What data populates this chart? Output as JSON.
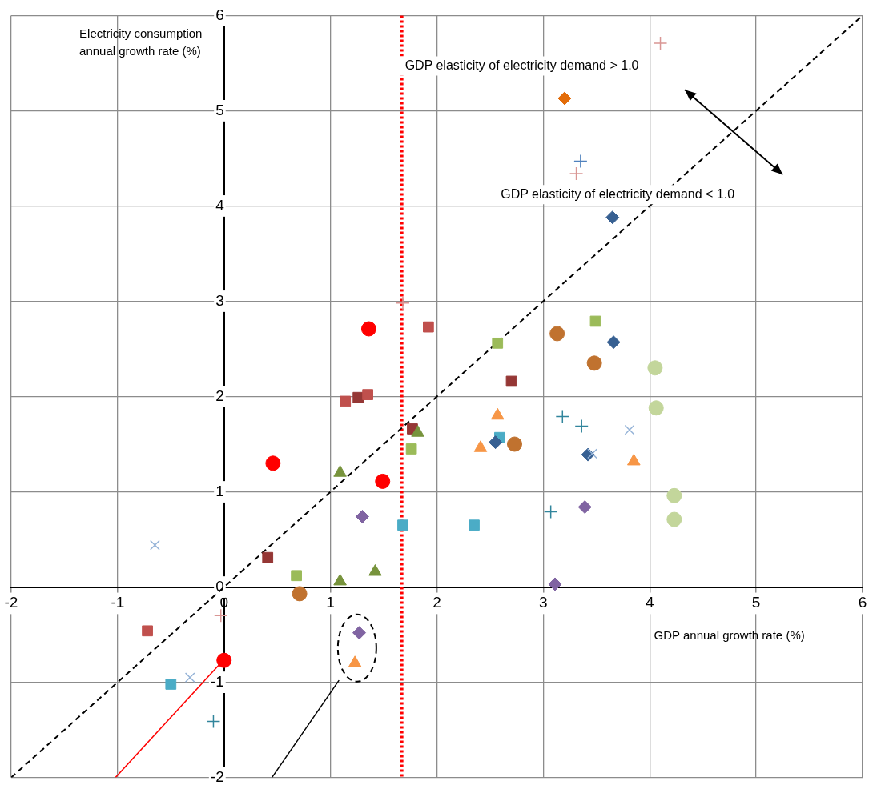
{
  "chart_data": {
    "type": "scatter",
    "xlabel": "GDP annual growth rate (%)",
    "ylabel": "Electricity consumption annual growth rate (%)",
    "xlim": [
      -2,
      6
    ],
    "xticks": [
      -2,
      -1,
      0,
      1,
      2,
      3,
      4,
      5,
      6
    ],
    "ylim": [
      -2,
      6
    ],
    "yticks": [
      -2,
      -1,
      0,
      1,
      2,
      3,
      4,
      5,
      6
    ],
    "grid": true,
    "legend": false,
    "annotations": [
      "GDP elasticity of electricity demand > 1.0",
      "GDP elasticity of electricity demand < 1.0"
    ],
    "ref_lines": [
      {
        "axis": "x",
        "value": 1.67,
        "color": "#ff0000",
        "line_style": "dotted"
      }
    ],
    "series": [
      {
        "type": "line",
        "color": "#000000",
        "line_style": "dashed",
        "marker": "none",
        "x": [
          -2,
          6
        ],
        "values": [
          -2,
          6
        ]
      },
      {
        "color": "#ff0000",
        "marker": "circle",
        "x": [
          0.46,
          1.36,
          1.49,
          0.0
        ],
        "values": [
          1.3,
          2.71,
          1.11,
          -0.77
        ]
      },
      {
        "color": "#953735",
        "marker": "square",
        "x": [
          0.41,
          1.26,
          1.77,
          2.7
        ],
        "values": [
          0.31,
          1.99,
          1.66,
          2.16
        ]
      },
      {
        "color": "#c0504d",
        "marker": "square",
        "x": [
          -0.72,
          1.14,
          1.35,
          1.92
        ],
        "values": [
          -0.46,
          1.95,
          2.02,
          2.73
        ]
      },
      {
        "color": "#9bbb59",
        "marker": "square",
        "x": [
          0.68,
          1.76,
          2.57,
          3.49
        ],
        "values": [
          0.12,
          1.45,
          2.56,
          2.79
        ]
      },
      {
        "color": "#77933c",
        "marker": "triangle",
        "x": [
          1.09,
          1.09,
          1.42,
          1.82
        ],
        "values": [
          1.2,
          0.06,
          0.16,
          1.62
        ]
      },
      {
        "color": "#f79646",
        "marker": "triangle",
        "x": [
          1.23,
          2.41,
          2.57,
          3.85
        ],
        "values": [
          -0.8,
          1.46,
          1.8,
          1.32
        ]
      },
      {
        "color": "#4bacc6",
        "marker": "square",
        "x": [
          -0.5,
          1.68,
          2.35,
          2.59
        ],
        "values": [
          -1.02,
          0.65,
          0.65,
          1.57
        ]
      },
      {
        "color": "#c0722f",
        "marker": "circle",
        "x": [
          0.71,
          2.73,
          3.13,
          3.48
        ],
        "values": [
          -0.07,
          1.5,
          2.66,
          2.35
        ]
      },
      {
        "color": "#c3d69b",
        "marker": "circle",
        "x": [
          4.05,
          4.06,
          4.23,
          4.23
        ],
        "values": [
          2.3,
          1.88,
          0.96,
          0.71
        ]
      },
      {
        "color": "#8064a2",
        "marker": "diamond",
        "x": [
          1.3,
          1.27,
          3.11,
          3.39
        ],
        "values": [
          0.74,
          -0.48,
          0.03,
          0.84
        ]
      },
      {
        "color": "#376092",
        "marker": "diamond",
        "x": [
          2.55,
          3.42,
          3.66,
          3.65
        ],
        "values": [
          1.52,
          1.39,
          2.57,
          3.88
        ]
      },
      {
        "color": "#31859c",
        "marker": "cross",
        "x": [
          -0.1,
          3.07,
          3.18,
          3.36
        ],
        "values": [
          -1.41,
          0.79,
          1.79,
          1.69
        ]
      },
      {
        "color": "#95b3d7",
        "marker": "x",
        "x": [
          -0.65,
          -0.32,
          3.46,
          3.81
        ],
        "values": [
          0.44,
          -0.95,
          1.4,
          1.65
        ]
      },
      {
        "color": "#d99694",
        "marker": "cross",
        "x": [
          -0.03,
          1.68,
          3.31,
          4.1
        ],
        "values": [
          -0.3,
          2.98,
          4.34,
          5.71
        ]
      },
      {
        "color": "#e36c09",
        "marker": "diamond",
        "x": [
          3.2
        ],
        "values": [
          5.13
        ]
      },
      {
        "color": "#4f81bd",
        "marker": "cross",
        "x": [
          3.35
        ],
        "values": [
          4.47
        ]
      },
      {
        "type": "line",
        "color": "#000000",
        "line_style": "solid",
        "marker": "none",
        "x": [
          0.45,
          1.08
        ],
        "values": [
          -2,
          -0.98
        ]
      },
      {
        "type": "line",
        "color": "#ff0000",
        "line_style": "solid",
        "marker": "none",
        "x": [
          -1.02,
          -0.05
        ],
        "values": [
          -2,
          -0.82
        ]
      }
    ]
  }
}
